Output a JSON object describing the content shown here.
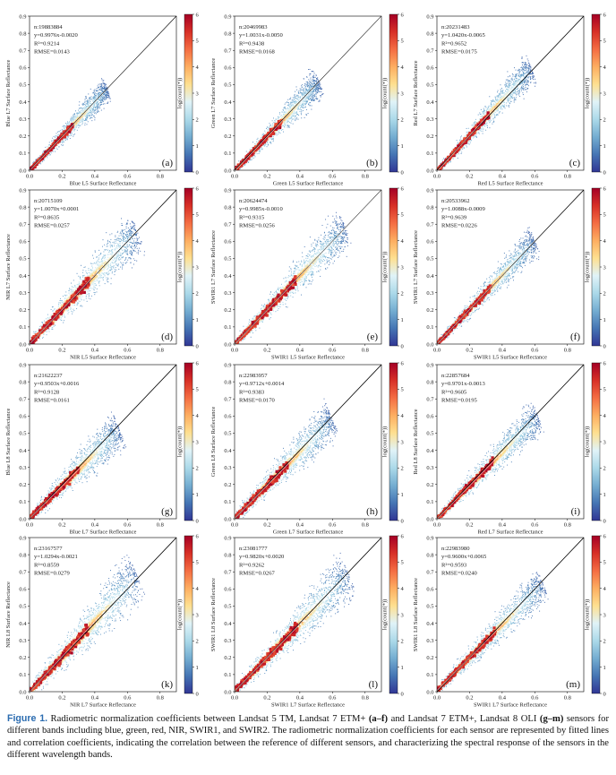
{
  "colors": {
    "colormap": [
      "#313695",
      "#4575b4",
      "#74add1",
      "#abd9e9",
      "#e0f3f8",
      "#fee090",
      "#fdae61",
      "#f46d43",
      "#d73027",
      "#a50026"
    ],
    "line": "#000000",
    "caption_label": "#2b6cb0"
  },
  "chart_data": [
    {
      "type": "heatmap",
      "letter": "(a)",
      "xlabel": "Blue L5 Surface Reflectance",
      "ylabel": "Blue L7 Surface Reflectance",
      "n": "n:19883884",
      "eq": "y=0.9976x-0.0020",
      "r2": "R²=0.9214",
      "rmse": "RMSE=0.0143",
      "slope": 0.9976,
      "intercept": -0.002,
      "xlim": [
        0,
        0.9
      ],
      "ylim": [
        0,
        0.9
      ],
      "x_ticks": [
        "0.0",
        "0.2",
        "0.4",
        "0.6",
        "0.8"
      ],
      "y_ticks": [
        "0.0",
        "0.1",
        "0.2",
        "0.3",
        "0.4",
        "0.5",
        "0.6",
        "0.7",
        "0.8",
        "0.9"
      ],
      "cbar_label": "log(count(*))",
      "cbar_ticks": [
        "0",
        "1",
        "2",
        "3",
        "4",
        "5",
        "6"
      ],
      "cbar_range": [
        0,
        6
      ],
      "point_cloud": {
        "x_max": 0.48,
        "spread": 0.05
      }
    },
    {
      "type": "heatmap",
      "letter": "(b)",
      "xlabel": "Green L5 Surface Reflectance",
      "ylabel": "Green L7 Surface Reflectance",
      "n": "n:20469983",
      "eq": "y=1.0031x-0.0050",
      "r2": "R²=0.9438",
      "rmse": "RMSE=0.0168",
      "slope": 1.0031,
      "intercept": -0.005,
      "xlim": [
        0,
        0.9
      ],
      "ylim": [
        0,
        0.9
      ],
      "x_ticks": [
        "0.0",
        "0.2",
        "0.4",
        "0.6",
        "0.8"
      ],
      "y_ticks": [
        "0.0",
        "0.1",
        "0.2",
        "0.3",
        "0.4",
        "0.5",
        "0.6",
        "0.7",
        "0.8",
        "0.9"
      ],
      "cbar_label": "log(count(*))",
      "cbar_ticks": [
        "0",
        "1",
        "2",
        "3",
        "4",
        "5",
        "6"
      ],
      "cbar_range": [
        0,
        6
      ],
      "point_cloud": {
        "x_max": 0.52,
        "spread": 0.06
      }
    },
    {
      "type": "heatmap",
      "letter": "(c)",
      "xlabel": "Red L5 Surface Reflectance",
      "ylabel": "Red L7 Surface Reflectance",
      "n": "n:20231483",
      "eq": "y=1.0420x-0.0065",
      "r2": "R²=0.9652",
      "rmse": "RMSE=0.0175",
      "slope": 1.042,
      "intercept": -0.0065,
      "xlim": [
        0,
        0.9
      ],
      "ylim": [
        0,
        0.9
      ],
      "x_ticks": [
        "0.0",
        "0.2",
        "0.4",
        "0.6",
        "0.8"
      ],
      "y_ticks": [
        "0.0",
        "0.1",
        "0.2",
        "0.3",
        "0.4",
        "0.5",
        "0.6",
        "0.7",
        "0.8",
        "0.9"
      ],
      "cbar_label": "log(count(*))",
      "cbar_ticks": [
        "0",
        "1",
        "2",
        "3",
        "4",
        "5",
        "6"
      ],
      "cbar_range": [
        0,
        6
      ],
      "point_cloud": {
        "x_max": 0.58,
        "spread": 0.06
      }
    },
    {
      "type": "heatmap",
      "letter": "(d)",
      "xlabel": "NIR L5 Surface Reflectance",
      "ylabel": "NIR L7 Surface Reflectance",
      "n": "n:20715109",
      "eq": "y=1.0070x+0.0001",
      "r2": "R²=0.8635",
      "rmse": "RMSE=0.0257",
      "slope": 1.007,
      "intercept": 0.0001,
      "xlim": [
        0,
        0.9
      ],
      "ylim": [
        0,
        0.9
      ],
      "x_ticks": [
        "0.0",
        "0.2",
        "0.4",
        "0.6",
        "0.8"
      ],
      "y_ticks": [
        "0.0",
        "0.1",
        "0.2",
        "0.3",
        "0.4",
        "0.5",
        "0.6",
        "0.7",
        "0.8",
        "0.9"
      ],
      "cbar_label": "log(count(*))",
      "cbar_ticks": [
        "0",
        "1",
        "2",
        "3",
        "4",
        "5",
        "6"
      ],
      "cbar_range": [
        0,
        6
      ],
      "point_cloud": {
        "x_max": 0.66,
        "spread": 0.09
      }
    },
    {
      "type": "heatmap",
      "letter": "(e)",
      "xlabel": "SWIR1 L5 Surface Reflectance",
      "ylabel": "SWIR1 L7 Surface Reflectance",
      "n": "n:20624474",
      "eq": "y=0.9985x-0.0010",
      "r2": "R²=0.9315",
      "rmse": "RMSE=0.0256",
      "slope": 0.9985,
      "intercept": -0.001,
      "xlim": [
        0,
        0.9
      ],
      "ylim": [
        0,
        0.9
      ],
      "x_ticks": [
        "0.0",
        "0.2",
        "0.4",
        "0.6",
        "0.8"
      ],
      "y_ticks": [
        "0.0",
        "0.1",
        "0.2",
        "0.3",
        "0.4",
        "0.5",
        "0.6",
        "0.7",
        "0.8",
        "0.9"
      ],
      "cbar_label": "log(count(*))",
      "cbar_ticks": [
        "0",
        "1",
        "2",
        "3",
        "4",
        "5",
        "6"
      ],
      "cbar_range": [
        0,
        6
      ],
      "point_cloud": {
        "x_max": 0.68,
        "spread": 0.08
      }
    },
    {
      "type": "heatmap",
      "letter": "(f)",
      "xlabel": "SWIR1 L5 Surface Reflectance",
      "ylabel": "SWIR1 L7 Surface Reflectance",
      "n": "n:20533962",
      "eq": "y=1.0088x-0.0009",
      "r2": "R²=0.9639",
      "rmse": "RMSE=0.0226",
      "slope": 1.0088,
      "intercept": -0.0009,
      "xlim": [
        0,
        0.9
      ],
      "ylim": [
        0,
        0.9
      ],
      "x_ticks": [
        "0.0",
        "0.2",
        "0.4",
        "0.6",
        "0.8"
      ],
      "y_ticks": [
        "0.0",
        "0.1",
        "0.2",
        "0.3",
        "0.4",
        "0.5",
        "0.6",
        "0.7",
        "0.8",
        "0.9"
      ],
      "cbar_label": "log(count(*))",
      "cbar_ticks": [
        "0",
        "1",
        "2",
        "3",
        "4",
        "5",
        "6"
      ],
      "cbar_range": [
        0,
        6
      ],
      "point_cloud": {
        "x_max": 0.6,
        "spread": 0.06
      }
    },
    {
      "type": "heatmap",
      "letter": "(g)",
      "xlabel": "Blue L7 Surface Reflectance",
      "ylabel": "Blue L8 Surface Reflectance",
      "n": "n:21622237",
      "eq": "y=0.9503x+0.0016",
      "r2": "R²=0.9128",
      "rmse": "RMSE=0.0161",
      "slope": 0.9503,
      "intercept": 0.0016,
      "xlim": [
        0,
        0.9
      ],
      "ylim": [
        0,
        0.9
      ],
      "x_ticks": [
        "0.0",
        "0.2",
        "0.4",
        "0.6",
        "0.8"
      ],
      "y_ticks": [
        "0.0",
        "0.1",
        "0.2",
        "0.3",
        "0.4",
        "0.5",
        "0.6",
        "0.7",
        "0.8",
        "0.9"
      ],
      "cbar_label": "log(count(*))",
      "cbar_ticks": [
        "0",
        "1",
        "2",
        "3",
        "4",
        "5",
        "6"
      ],
      "cbar_range": [
        0,
        6
      ],
      "point_cloud": {
        "x_max": 0.55,
        "spread": 0.08
      }
    },
    {
      "type": "heatmap",
      "letter": "(h)",
      "xlabel": "Green L7 Surface Reflectance",
      "ylabel": "Green L8 Surface Reflectance",
      "n": "n:22983957",
      "eq": "y=0.9712x+0.0014",
      "r2": "R²=0.9383",
      "rmse": "RMSE=0.0170",
      "slope": 0.9712,
      "intercept": 0.0014,
      "xlim": [
        0,
        0.9
      ],
      "ylim": [
        0,
        0.9
      ],
      "x_ticks": [
        "0.0",
        "0.2",
        "0.4",
        "0.6",
        "0.8"
      ],
      "y_ticks": [
        "0.0",
        "0.1",
        "0.2",
        "0.3",
        "0.4",
        "0.5",
        "0.6",
        "0.7",
        "0.8",
        "0.9"
      ],
      "cbar_label": "log(count(*))",
      "cbar_ticks": [
        "0",
        "1",
        "2",
        "3",
        "4",
        "5",
        "6"
      ],
      "cbar_range": [
        0,
        6
      ],
      "point_cloud": {
        "x_max": 0.6,
        "spread": 0.08
      }
    },
    {
      "type": "heatmap",
      "letter": "(i)",
      "xlabel": "Red L7 Surface Reflectance",
      "ylabel": "Red L8 Surface Reflectance",
      "n": "n:22857684",
      "eq": "y=0.9701x-0.0013",
      "r2": "R²=0.9605",
      "rmse": "RMSE=0.0195",
      "slope": 0.9701,
      "intercept": -0.0013,
      "xlim": [
        0,
        0.9
      ],
      "ylim": [
        0,
        0.9
      ],
      "x_ticks": [
        "0.0",
        "0.2",
        "0.4",
        "0.6",
        "0.8"
      ],
      "y_ticks": [
        "0.0",
        "0.1",
        "0.2",
        "0.3",
        "0.4",
        "0.5",
        "0.6",
        "0.7",
        "0.8",
        "0.9"
      ],
      "cbar_label": "log(count(*))",
      "cbar_ticks": [
        "0",
        "1",
        "2",
        "3",
        "4",
        "5",
        "6"
      ],
      "cbar_range": [
        0,
        6
      ],
      "point_cloud": {
        "x_max": 0.62,
        "spread": 0.07
      }
    },
    {
      "type": "heatmap",
      "letter": "(k)",
      "xlabel": "NIR L7 Surface Reflectance",
      "ylabel": "NIR L8 Surface Reflectance",
      "n": "n:23167577",
      "eq": "y=1.0294x-0.0021",
      "r2": "R²=0.8559",
      "rmse": "RMSE=0.0279",
      "slope": 1.0294,
      "intercept": -0.0021,
      "xlim": [
        0,
        0.9
      ],
      "ylim": [
        0,
        0.9
      ],
      "x_ticks": [
        "0.0",
        "0.2",
        "0.4",
        "0.6",
        "0.8"
      ],
      "y_ticks": [
        "0.0",
        "0.1",
        "0.2",
        "0.3",
        "0.4",
        "0.5",
        "0.6",
        "0.7",
        "0.8",
        "0.9"
      ],
      "cbar_label": "log(count(*))",
      "cbar_ticks": [
        "0",
        "1",
        "2",
        "3",
        "4",
        "5",
        "6"
      ],
      "cbar_range": [
        0,
        6
      ],
      "point_cloud": {
        "x_max": 0.66,
        "spread": 0.1
      }
    },
    {
      "type": "heatmap",
      "letter": "(l)",
      "xlabel": "SWIR1 L7 Surface Reflectance",
      "ylabel": "SWIR1 L8 Surface Reflectance",
      "n": "n:23081777",
      "eq": "y=0.9820x+0.0020",
      "r2": "R²=0.9262",
      "rmse": "RMSE=0.0267",
      "slope": 0.982,
      "intercept": 0.002,
      "xlim": [
        0,
        0.9
      ],
      "ylim": [
        0,
        0.9
      ],
      "x_ticks": [
        "0.0",
        "0.2",
        "0.4",
        "0.6",
        "0.8"
      ],
      "y_ticks": [
        "0.0",
        "0.1",
        "0.2",
        "0.3",
        "0.4",
        "0.5",
        "0.6",
        "0.7",
        "0.8",
        "0.9"
      ],
      "cbar_label": "log(count(*))",
      "cbar_ticks": [
        "0",
        "1",
        "2",
        "3",
        "4",
        "5",
        "6"
      ],
      "cbar_range": [
        0,
        6
      ],
      "point_cloud": {
        "x_max": 0.7,
        "spread": 0.09
      }
    },
    {
      "type": "heatmap",
      "letter": "(m)",
      "xlabel": "SWIR1 L7 Surface Reflectance",
      "ylabel": "SWIR1 L8 Surface Reflectance",
      "n": "n:22983980",
      "eq": "y=0.9600x+0.0065",
      "r2": "R²=0.9593",
      "rmse": "RMSE=0.0240",
      "slope": 0.96,
      "intercept": 0.0065,
      "xlim": [
        0,
        0.9
      ],
      "ylim": [
        0,
        0.9
      ],
      "x_ticks": [
        "0.0",
        "0.2",
        "0.4",
        "0.6",
        "0.8"
      ],
      "y_ticks": [
        "0.0",
        "0.1",
        "0.2",
        "0.3",
        "0.4",
        "0.5",
        "0.6",
        "0.7",
        "0.8",
        "0.9"
      ],
      "cbar_label": "log(count(*))",
      "cbar_ticks": [
        "0",
        "1",
        "2",
        "3",
        "4",
        "5",
        "6"
      ],
      "cbar_range": [
        0,
        6
      ],
      "point_cloud": {
        "x_max": 0.65,
        "spread": 0.07
      }
    }
  ],
  "caption": {
    "label": "Figure 1.",
    "part1": " Radiometric normalization coefficients between Landsat 5 TM, Landsat 7 ETM+ ",
    "bold1": "(a–f)",
    "part2": " and Landsat 7 ETM+, Landsat 8 OLI ",
    "bold2": "(g–m)",
    "part3": " sensors for different bands including blue, green, red, NIR, SWIR1, and SWIR2. The radiometric normalization coefficients for each sensor are represented by fitted lines and correlation coefficients, indicating the correlation between the reference of different sensors, and characterizing the spectral response of the sensors in the different wavelength bands."
  }
}
